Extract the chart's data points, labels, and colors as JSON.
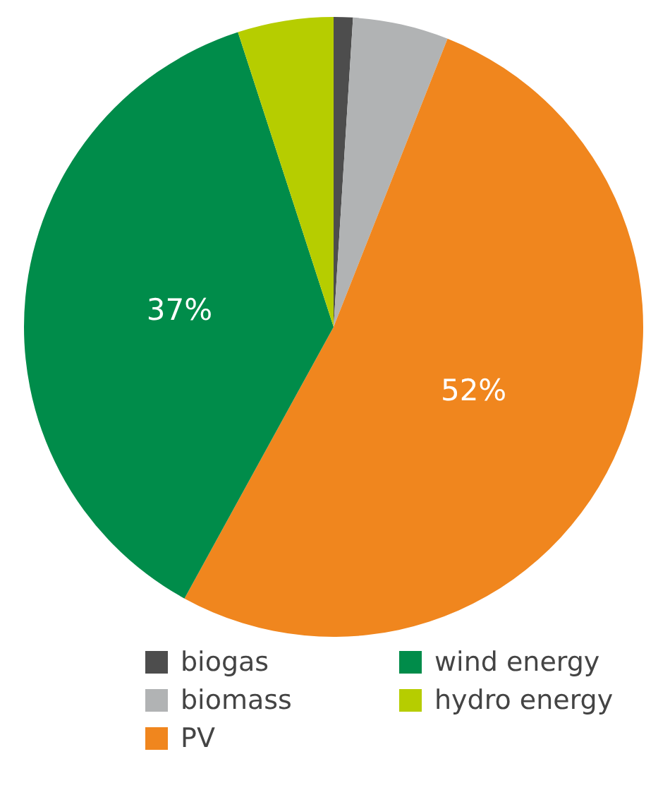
{
  "chart_data": {
    "type": "pie",
    "categories": [
      "biogas",
      "biomass",
      "PV",
      "wind energy",
      "hydro energy"
    ],
    "values": [
      1,
      5,
      52,
      37,
      5
    ],
    "colors": [
      "#4d4d4d",
      "#b1b3b4",
      "#f0861e",
      "#008c4a",
      "#b6cd00"
    ],
    "value_labels": [
      null,
      null,
      "52%",
      "37%",
      null
    ],
    "legend": "bottom"
  }
}
